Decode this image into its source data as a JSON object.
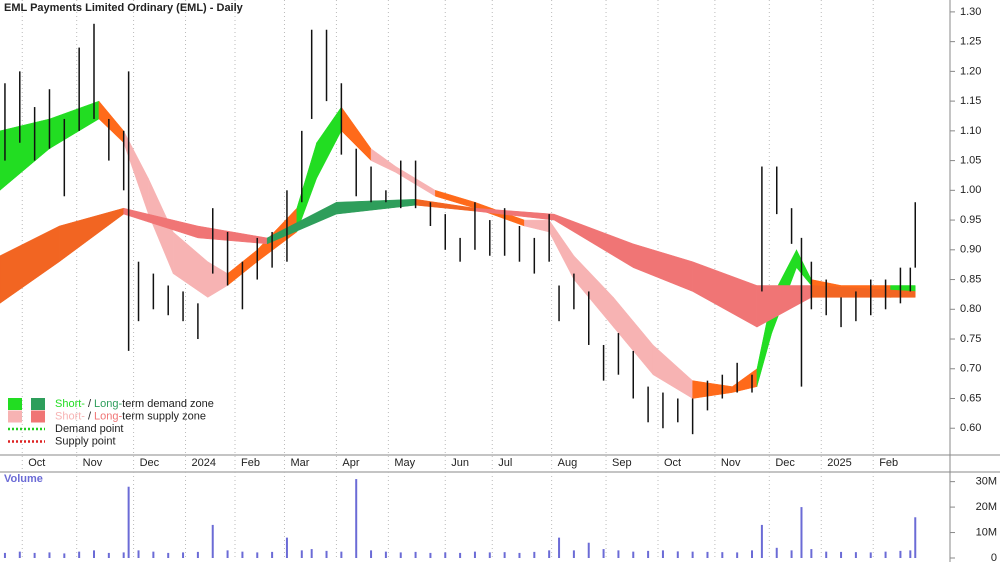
{
  "chart_data": {
    "type": "ohlc",
    "title": "EML Payments Limited Ordinary (EML) - Daily",
    "volume_label": "Volume",
    "xlim": [
      0,
      380
    ],
    "xticks": [
      {
        "value": 9,
        "label": "Oct"
      },
      {
        "value": 31,
        "label": "Nov"
      },
      {
        "value": 54,
        "label": "Dec"
      },
      {
        "value": 75,
        "label": "2024"
      },
      {
        "value": 95,
        "label": "Feb"
      },
      {
        "value": 115,
        "label": "Mar"
      },
      {
        "value": 136,
        "label": "Apr"
      },
      {
        "value": 157,
        "label": "May"
      },
      {
        "value": 180,
        "label": "Jun"
      },
      {
        "value": 199,
        "label": "Jul"
      },
      {
        "value": 223,
        "label": "Aug"
      },
      {
        "value": 245,
        "label": "Sep"
      },
      {
        "value": 266,
        "label": "Oct"
      },
      {
        "value": 289,
        "label": "Nov"
      },
      {
        "value": 311,
        "label": "Dec"
      },
      {
        "value": 332,
        "label": "2025"
      },
      {
        "value": 353,
        "label": "Feb"
      }
    ],
    "ylim": [
      0.555,
      1.32
    ],
    "yticks": [
      {
        "value": 0.6,
        "label": "0.60"
      },
      {
        "value": 0.65,
        "label": "0.65"
      },
      {
        "value": 0.7,
        "label": "0.70"
      },
      {
        "value": 0.75,
        "label": "0.75"
      },
      {
        "value": 0.8,
        "label": "0.80"
      },
      {
        "value": 0.85,
        "label": "0.85"
      },
      {
        "value": 0.9,
        "label": "0.90"
      },
      {
        "value": 0.95,
        "label": "0.95"
      },
      {
        "value": 1.0,
        "label": "1.00"
      },
      {
        "value": 1.05,
        "label": "1.05"
      },
      {
        "value": 1.1,
        "label": "1.10"
      },
      {
        "value": 1.15,
        "label": "1.15"
      },
      {
        "value": 1.2,
        "label": "1.20"
      },
      {
        "value": 1.25,
        "label": "1.25"
      },
      {
        "value": 1.3,
        "label": "1.30"
      }
    ],
    "bar_color": "#111111",
    "x": [
      2,
      8,
      14,
      20,
      26,
      32,
      38,
      44,
      50,
      52,
      56,
      62,
      68,
      74,
      80,
      86,
      92,
      98,
      104,
      110,
      116,
      122,
      126,
      132,
      138,
      144,
      150,
      156,
      162,
      168,
      174,
      180,
      186,
      192,
      198,
      204,
      210,
      216,
      222,
      226,
      232,
      238,
      244,
      250,
      256,
      262,
      268,
      274,
      280,
      286,
      292,
      298,
      304,
      308,
      314,
      320,
      324,
      328,
      334,
      340,
      346,
      352,
      358,
      364,
      368,
      370
    ],
    "high": [
      1.18,
      1.2,
      1.14,
      1.17,
      1.12,
      1.24,
      1.28,
      1.12,
      1.1,
      1.2,
      0.88,
      0.86,
      0.84,
      0.83,
      0.81,
      0.97,
      0.93,
      0.88,
      0.92,
      0.93,
      1.0,
      1.1,
      1.27,
      1.27,
      1.18,
      1.07,
      1.04,
      1.0,
      1.05,
      1.05,
      0.98,
      0.96,
      0.92,
      0.98,
      0.95,
      0.97,
      0.94,
      0.92,
      0.96,
      0.84,
      0.86,
      0.83,
      0.74,
      0.76,
      0.73,
      0.67,
      0.66,
      0.65,
      0.65,
      0.68,
      0.69,
      0.71,
      0.69,
      1.04,
      1.04,
      0.97,
      0.92,
      0.88,
      0.85,
      0.82,
      0.83,
      0.85,
      0.85,
      0.87,
      0.87,
      0.98
    ],
    "low": [
      1.05,
      1.08,
      1.05,
      1.07,
      0.99,
      1.1,
      1.12,
      1.05,
      1.0,
      0.73,
      0.78,
      0.8,
      0.79,
      0.78,
      0.75,
      0.86,
      0.84,
      0.8,
      0.85,
      0.87,
      0.88,
      0.98,
      1.12,
      1.15,
      1.06,
      0.99,
      0.98,
      0.98,
      0.97,
      0.97,
      0.94,
      0.9,
      0.88,
      0.9,
      0.89,
      0.89,
      0.88,
      0.86,
      0.88,
      0.78,
      0.8,
      0.74,
      0.68,
      0.69,
      0.65,
      0.61,
      0.6,
      0.61,
      0.59,
      0.63,
      0.65,
      0.66,
      0.66,
      0.83,
      0.96,
      0.91,
      0.67,
      0.8,
      0.79,
      0.77,
      0.78,
      0.79,
      0.8,
      0.81,
      0.83,
      0.87
    ],
    "volume": [
      2000000,
      2500000,
      2000000,
      2200000,
      1800000,
      2500000,
      3000000,
      2000000,
      2200000,
      28000000,
      3000000,
      2500000,
      2000000,
      2200000,
      2400000,
      13000000,
      3000000,
      2500000,
      2200000,
      2400000,
      8000000,
      3000000,
      3500000,
      2800000,
      2500000,
      31000000,
      3000000,
      2500000,
      2200000,
      2400000,
      2000000,
      2200000,
      2000000,
      2500000,
      2200000,
      2300000,
      2000000,
      2400000,
      3000000,
      8000000,
      3000000,
      6000000,
      3500000,
      3000000,
      2500000,
      2800000,
      3000000,
      2600000,
      2500000,
      2400000,
      2300000,
      2200000,
      3000000,
      13000000,
      4000000,
      3000000,
      20000000,
      3500000,
      2500000,
      2400000,
      2300000,
      2200000,
      2500000,
      2800000,
      3000000,
      16000000
    ],
    "volume_color": "#6b6bd6",
    "volume_lim": [
      0,
      33000000
    ],
    "volume_ticks": [
      0,
      {
        "value": 10000000,
        "label": "10M"
      },
      {
        "value": 20000000,
        "label": "20M"
      },
      {
        "value": 30000000,
        "label": "30M"
      }
    ],
    "zones": [
      {
        "x": [
          0,
          20,
          40,
          50,
          60,
          70,
          84,
          92,
          104,
          120,
          128,
          138,
          150,
          160,
          176,
          192,
          212,
          222,
          232,
          248,
          264,
          280,
          296,
          306,
          312,
          322,
          328,
          340,
          360,
          370
        ],
        "upper": [
          1.1,
          1.12,
          1.15,
          1.1,
          1.02,
          0.93,
          0.88,
          0.86,
          0.9,
          0.97,
          1.08,
          1.14,
          1.07,
          1.04,
          1.0,
          0.98,
          0.95,
          0.95,
          0.89,
          0.82,
          0.74,
          0.68,
          0.67,
          0.7,
          0.82,
          0.9,
          0.85,
          0.84,
          0.84,
          0.84
        ],
        "lower": [
          1.0,
          1.07,
          1.12,
          1.08,
          0.96,
          0.86,
          0.82,
          0.84,
          0.88,
          0.93,
          1.02,
          1.1,
          1.05,
          1.03,
          0.99,
          0.97,
          0.94,
          0.93,
          0.85,
          0.77,
          0.69,
          0.65,
          0.66,
          0.67,
          0.76,
          0.87,
          0.84,
          0.83,
          0.82,
          0.83
        ],
        "colors": [
          "#22dd22",
          "#22dd22",
          "#ff6a1a",
          "#f7b3b3",
          "#f7b3b3",
          "#f7b3b3",
          "#f7b3b3",
          "#ff6a1a",
          "#ff6a1a",
          "#22dd22",
          "#22dd22",
          "#ff6a1a",
          "#f7b3b3",
          "#f7b3b3",
          "#ff6a1a",
          "#ff6a1a",
          "#f7b3b3",
          "#f7b3b3",
          "#f7b3b3",
          "#f7b3b3",
          "#f7b3b3",
          "#ff6a1a",
          "#ff6a1a",
          "#22dd22",
          "#22dd22",
          "#22dd22",
          "#ff6a1a",
          "#ff6a1a",
          "#22dd22"
        ]
      },
      {
        "x": [
          0,
          24,
          50,
          80,
          108,
          136,
          168,
          192,
          224,
          256,
          280,
          306,
          328,
          370
        ],
        "upper": [
          0.89,
          0.94,
          0.97,
          0.94,
          0.92,
          0.98,
          0.985,
          0.97,
          0.96,
          0.91,
          0.88,
          0.84,
          0.84,
          0.83
        ],
        "lower": [
          0.81,
          0.88,
          0.96,
          0.92,
          0.91,
          0.96,
          0.975,
          0.965,
          0.95,
          0.87,
          0.83,
          0.77,
          0.82,
          0.82
        ],
        "colors": [
          "#f26522",
          "#f26522",
          "#f07575",
          "#f07575",
          "#2e9e5b",
          "#2e9e5b",
          "#f26522",
          "#f07575",
          "#f07575",
          "#f07575",
          "#f07575",
          "#f07575",
          "#f26522"
        ]
      }
    ],
    "legend": [
      {
        "short": "Short-",
        "sep": "/",
        "long": "Long-",
        "text": "term demand zone",
        "short_color": "#22dd22",
        "long_color": "#2e9e5b"
      },
      {
        "short": "Short-",
        "sep": "/",
        "long": "Long-",
        "text": "term supply zone",
        "short_color": "#f7b3b3",
        "long_color": "#f07575"
      },
      {
        "text": "Demand point",
        "color": "#22cc22"
      },
      {
        "text": "Supply point",
        "color": "#dd2222"
      }
    ]
  }
}
